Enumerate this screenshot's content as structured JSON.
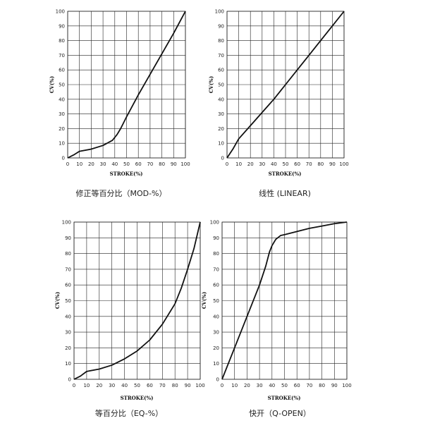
{
  "chart_data": [
    {
      "type": "line",
      "caption": "修正等百分比（MOD-%）",
      "xlabel": "STROKE(%)",
      "ylabel": "CV(%)",
      "xlim": [
        0,
        100
      ],
      "ylim": [
        0,
        100
      ],
      "xticks": [
        "0",
        "10",
        "20",
        "30",
        "40",
        "50",
        "60",
        "70",
        "80",
        "90",
        "100"
      ],
      "yticks": [
        "0",
        "10",
        "20",
        "30",
        "40",
        "50",
        "60",
        "70",
        "80",
        "90",
        "100"
      ],
      "grid": true,
      "series": [
        {
          "x": [
            0,
            5,
            10,
            20,
            30,
            38,
            42,
            45,
            50,
            60,
            70,
            80,
            90,
            100
          ],
          "y": [
            0,
            2,
            4.5,
            6,
            8.5,
            12,
            16,
            20,
            28,
            43,
            57,
            71,
            85,
            100
          ]
        }
      ]
    },
    {
      "type": "line",
      "caption": "线性 (LINEAR)",
      "xlabel": "STROKE(%)",
      "ylabel": "CV(%)",
      "xlim": [
        0,
        100
      ],
      "ylim": [
        0,
        100
      ],
      "xticks": [
        "0",
        "10",
        "20",
        "30",
        "40",
        "50",
        "60",
        "70",
        "80",
        "90",
        "100"
      ],
      "yticks": [
        "0",
        "10",
        "20",
        "30",
        "40",
        "50",
        "60",
        "70",
        "80",
        "90",
        "100"
      ],
      "grid": true,
      "series": [
        {
          "x": [
            0,
            5,
            10,
            20,
            30,
            40,
            50,
            60,
            70,
            80,
            90,
            100
          ],
          "y": [
            0,
            6,
            13,
            22,
            31,
            40,
            50,
            60,
            70,
            80,
            90,
            100
          ]
        }
      ]
    },
    {
      "type": "line",
      "caption": "等百分比（EQ-%）",
      "xlabel": "STROKE(%)",
      "ylabel": "CV(%)",
      "xlim": [
        0,
        100
      ],
      "ylim": [
        0,
        100
      ],
      "xticks": [
        "0",
        "10",
        "20",
        "30",
        "40",
        "50",
        "60",
        "70",
        "80",
        "90",
        "100"
      ],
      "yticks": [
        "0",
        "10",
        "20",
        "30",
        "40",
        "50",
        "60",
        "70",
        "80",
        "90",
        "100"
      ],
      "grid": true,
      "series": [
        {
          "x": [
            0,
            5,
            10,
            20,
            30,
            40,
            50,
            60,
            70,
            80,
            85,
            90,
            95,
            100
          ],
          "y": [
            0,
            2,
            5,
            6.5,
            9,
            13,
            18,
            25,
            35,
            48,
            58,
            70,
            83,
            100
          ]
        }
      ]
    },
    {
      "type": "line",
      "caption": "快开（Q-OPEN）",
      "xlabel": "STROKE(%)",
      "ylabel": "CV(%)",
      "xlim": [
        0,
        100
      ],
      "ylim": [
        0,
        100
      ],
      "xticks": [
        "0",
        "10",
        "20",
        "30",
        "40",
        "50",
        "60",
        "70",
        "80",
        "90",
        "100"
      ],
      "yticks": [
        "0",
        "10",
        "20",
        "30",
        "40",
        "50",
        "60",
        "70",
        "80",
        "90",
        "100"
      ],
      "grid": true,
      "series": [
        {
          "x": [
            0,
            10,
            20,
            30,
            35,
            38,
            40,
            43,
            47,
            50,
            60,
            70,
            80,
            90,
            100
          ],
          "y": [
            0,
            20,
            40,
            60,
            72,
            81,
            85,
            89,
            91.5,
            92,
            94,
            96,
            97.5,
            99,
            100
          ]
        }
      ]
    }
  ]
}
